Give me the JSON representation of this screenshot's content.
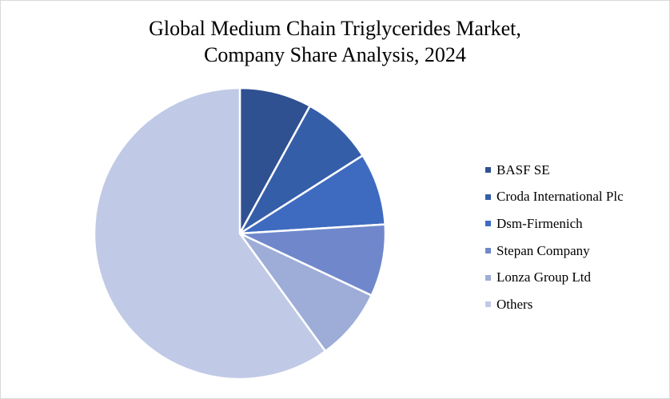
{
  "chart_data": {
    "type": "pie",
    "title_lines": [
      "Global Medium Chain Triglycerides Market,",
      "Company Share Analysis, 2024"
    ],
    "legend_position": "right",
    "slices": [
      {
        "name": "BASF SE",
        "value": 8,
        "color": "#2f5091"
      },
      {
        "name": "Croda International Plc",
        "value": 8,
        "color": "#355ea9"
      },
      {
        "name": "Dsm-Firmenich",
        "value": 8,
        "color": "#3e6bc0"
      },
      {
        "name": "Stepan Company",
        "value": 8,
        "color": "#7088cb"
      },
      {
        "name": "Lonza Group Ltd",
        "value": 8,
        "color": "#9dadd8"
      },
      {
        "name": "Others",
        "value": 60,
        "color": "#c0cae6"
      }
    ]
  }
}
